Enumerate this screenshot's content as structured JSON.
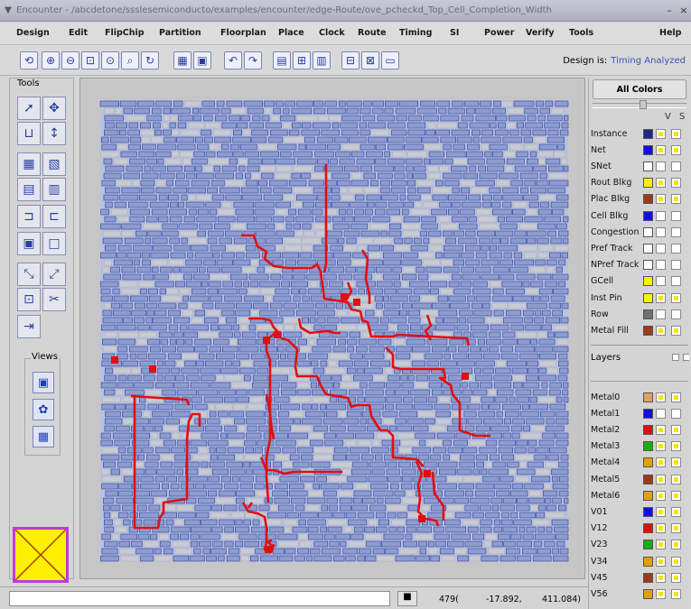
{
  "titlebar": {
    "title": "Encounter - /abcdetone/ssslesemiconducto/examples/encounter/edge-Route/ove_pcheckd_Top_Cell_Completion_Width",
    "close_glyph": "×",
    "title_glyph": "▼",
    "minimize_glyph": "–"
  },
  "menu": {
    "items": [
      "Design",
      "Edit",
      "FlipChip",
      "Partition",
      "Floorplan",
      "Place",
      "Clock",
      "Route",
      "Timing",
      "SI",
      "Power",
      "Verify",
      "Tools",
      "Help"
    ]
  },
  "toolbar": {
    "design_is_label": "Design is:",
    "design_status": "Timing Analyzed",
    "buttons": [
      "redraw-icon",
      "zoom-in-icon",
      "zoom-out-icon",
      "zoom-fit-icon",
      "zoom-select-icon",
      "zoom-previous-icon",
      "refresh-icon",
      "layout-view-icon",
      "zoom-area-icon",
      "undo-icon",
      "redo-icon",
      "attribute-editor-icon",
      "hierarchy-icon",
      "summary-icon",
      "delete-icon",
      "clear-icon",
      "highlight-icon"
    ],
    "glyphs": [
      "⟲",
      "⊕",
      "⊖",
      "⊡",
      "⊙",
      "⌕",
      "↻",
      "▦",
      "▣",
      "↶",
      "↷",
      "▤",
      "⊞",
      "▥",
      "⊟",
      "⊠",
      "▭"
    ]
  },
  "tools": {
    "title": "Tools",
    "buttons": [
      "select-icon",
      "move-icon",
      "ruler-icon",
      "pan-icon",
      "cell-icon",
      "net-icon",
      "group-icon",
      "wire-icon",
      "cut-icon",
      "merge-icon",
      "module-icon",
      "blank-icon",
      "wire-edit-icon",
      "stretch-icon",
      "resize-icon",
      "scissors-icon",
      "align-icon"
    ],
    "glyphs": [
      "➚",
      "✥",
      "⊔",
      "↕",
      "▦",
      "▧",
      "▤",
      "▥",
      "⊐",
      "⊏",
      "▣",
      "□",
      "⤡",
      "⤢",
      "⊡",
      "✂",
      "⇥"
    ],
    "views_title": "Views",
    "view_buttons": [
      "floorplan-view-icon",
      "amoeba-view-icon",
      "physical-view-icon"
    ],
    "view_glyphs": [
      "▣",
      "✿",
      "▦"
    ],
    "selected_color": "#ffef00"
  },
  "right_panel": {
    "all_colors_label": "All Colors",
    "v_label": "V",
    "s_label": "S",
    "objects": [
      {
        "label": "Instance",
        "color": "#1a2a8a",
        "v": true,
        "s": true
      },
      {
        "label": "Net",
        "color": "#1010dd",
        "v": true,
        "s": true
      },
      {
        "label": "SNet",
        "color": "#ffffff",
        "v": true,
        "s": false
      },
      {
        "label": "Rout Blkg",
        "color": "#f4f400",
        "v": true,
        "s": true
      },
      {
        "label": "Plac Blkg",
        "color": "#9b3a1a",
        "v": true,
        "s": true
      },
      {
        "label": "Cell Blkg",
        "color": "#1010dd",
        "v": false,
        "s": false
      },
      {
        "label": "Congestion",
        "color": "#ffffff",
        "v": false,
        "s": false
      },
      {
        "label": "Pref Track",
        "color": "#ffffff",
        "v": false,
        "s": false
      },
      {
        "label": "NPref Track",
        "color": "#ffffff",
        "v": false,
        "s": false
      },
      {
        "label": "GCell",
        "color": "#f4f400",
        "v": true,
        "s": false
      },
      {
        "label": "Inst Pin",
        "color": "#f4f400",
        "v": true,
        "s": true
      },
      {
        "label": "Row",
        "color": "#707070",
        "v": true,
        "s": false
      },
      {
        "label": "Metal Fill",
        "color": "#9b3a1a",
        "v": true,
        "s": true
      }
    ],
    "layers_label": "Layers",
    "layers": [
      {
        "label": "Metal0",
        "color": "#e0a060",
        "v": false,
        "s": true
      },
      {
        "label": "Metal1",
        "color": "#1010dd",
        "v": false,
        "s": false
      },
      {
        "label": "Metal2",
        "color": "#dd1010",
        "v": false,
        "s": true
      },
      {
        "label": "Metal3",
        "color": "#10b010",
        "v": false,
        "s": true
      },
      {
        "label": "Metal4",
        "color": "#e0a010",
        "v": false,
        "s": true
      },
      {
        "label": "Metal5",
        "color": "#9b3a1a",
        "v": false,
        "s": true
      },
      {
        "label": "Metal6",
        "color": "#e0a010",
        "v": false,
        "s": true
      },
      {
        "label": "V01",
        "color": "#1010dd",
        "v": false,
        "s": true
      },
      {
        "label": "V12",
        "color": "#dd1010",
        "v": false,
        "s": true
      },
      {
        "label": "V23",
        "color": "#10b010",
        "v": false,
        "s": true
      },
      {
        "label": "V34",
        "color": "#e0a010",
        "v": false,
        "s": true
      },
      {
        "label": "V45",
        "color": "#9b3a1a",
        "v": false,
        "s": true
      },
      {
        "label": "V56",
        "color": "#e0a010",
        "v": false,
        "s": true
      }
    ]
  },
  "statusbar": {
    "command_value": "",
    "button_glyph": "■",
    "coord_1": "479(",
    "coord_2": "-17.892,",
    "coord_3": "411.084)"
  },
  "colors": {
    "cell_blue": "#2a3fa8",
    "route_red": "#e01010",
    "canvas_bg": "#c6c6c6"
  }
}
